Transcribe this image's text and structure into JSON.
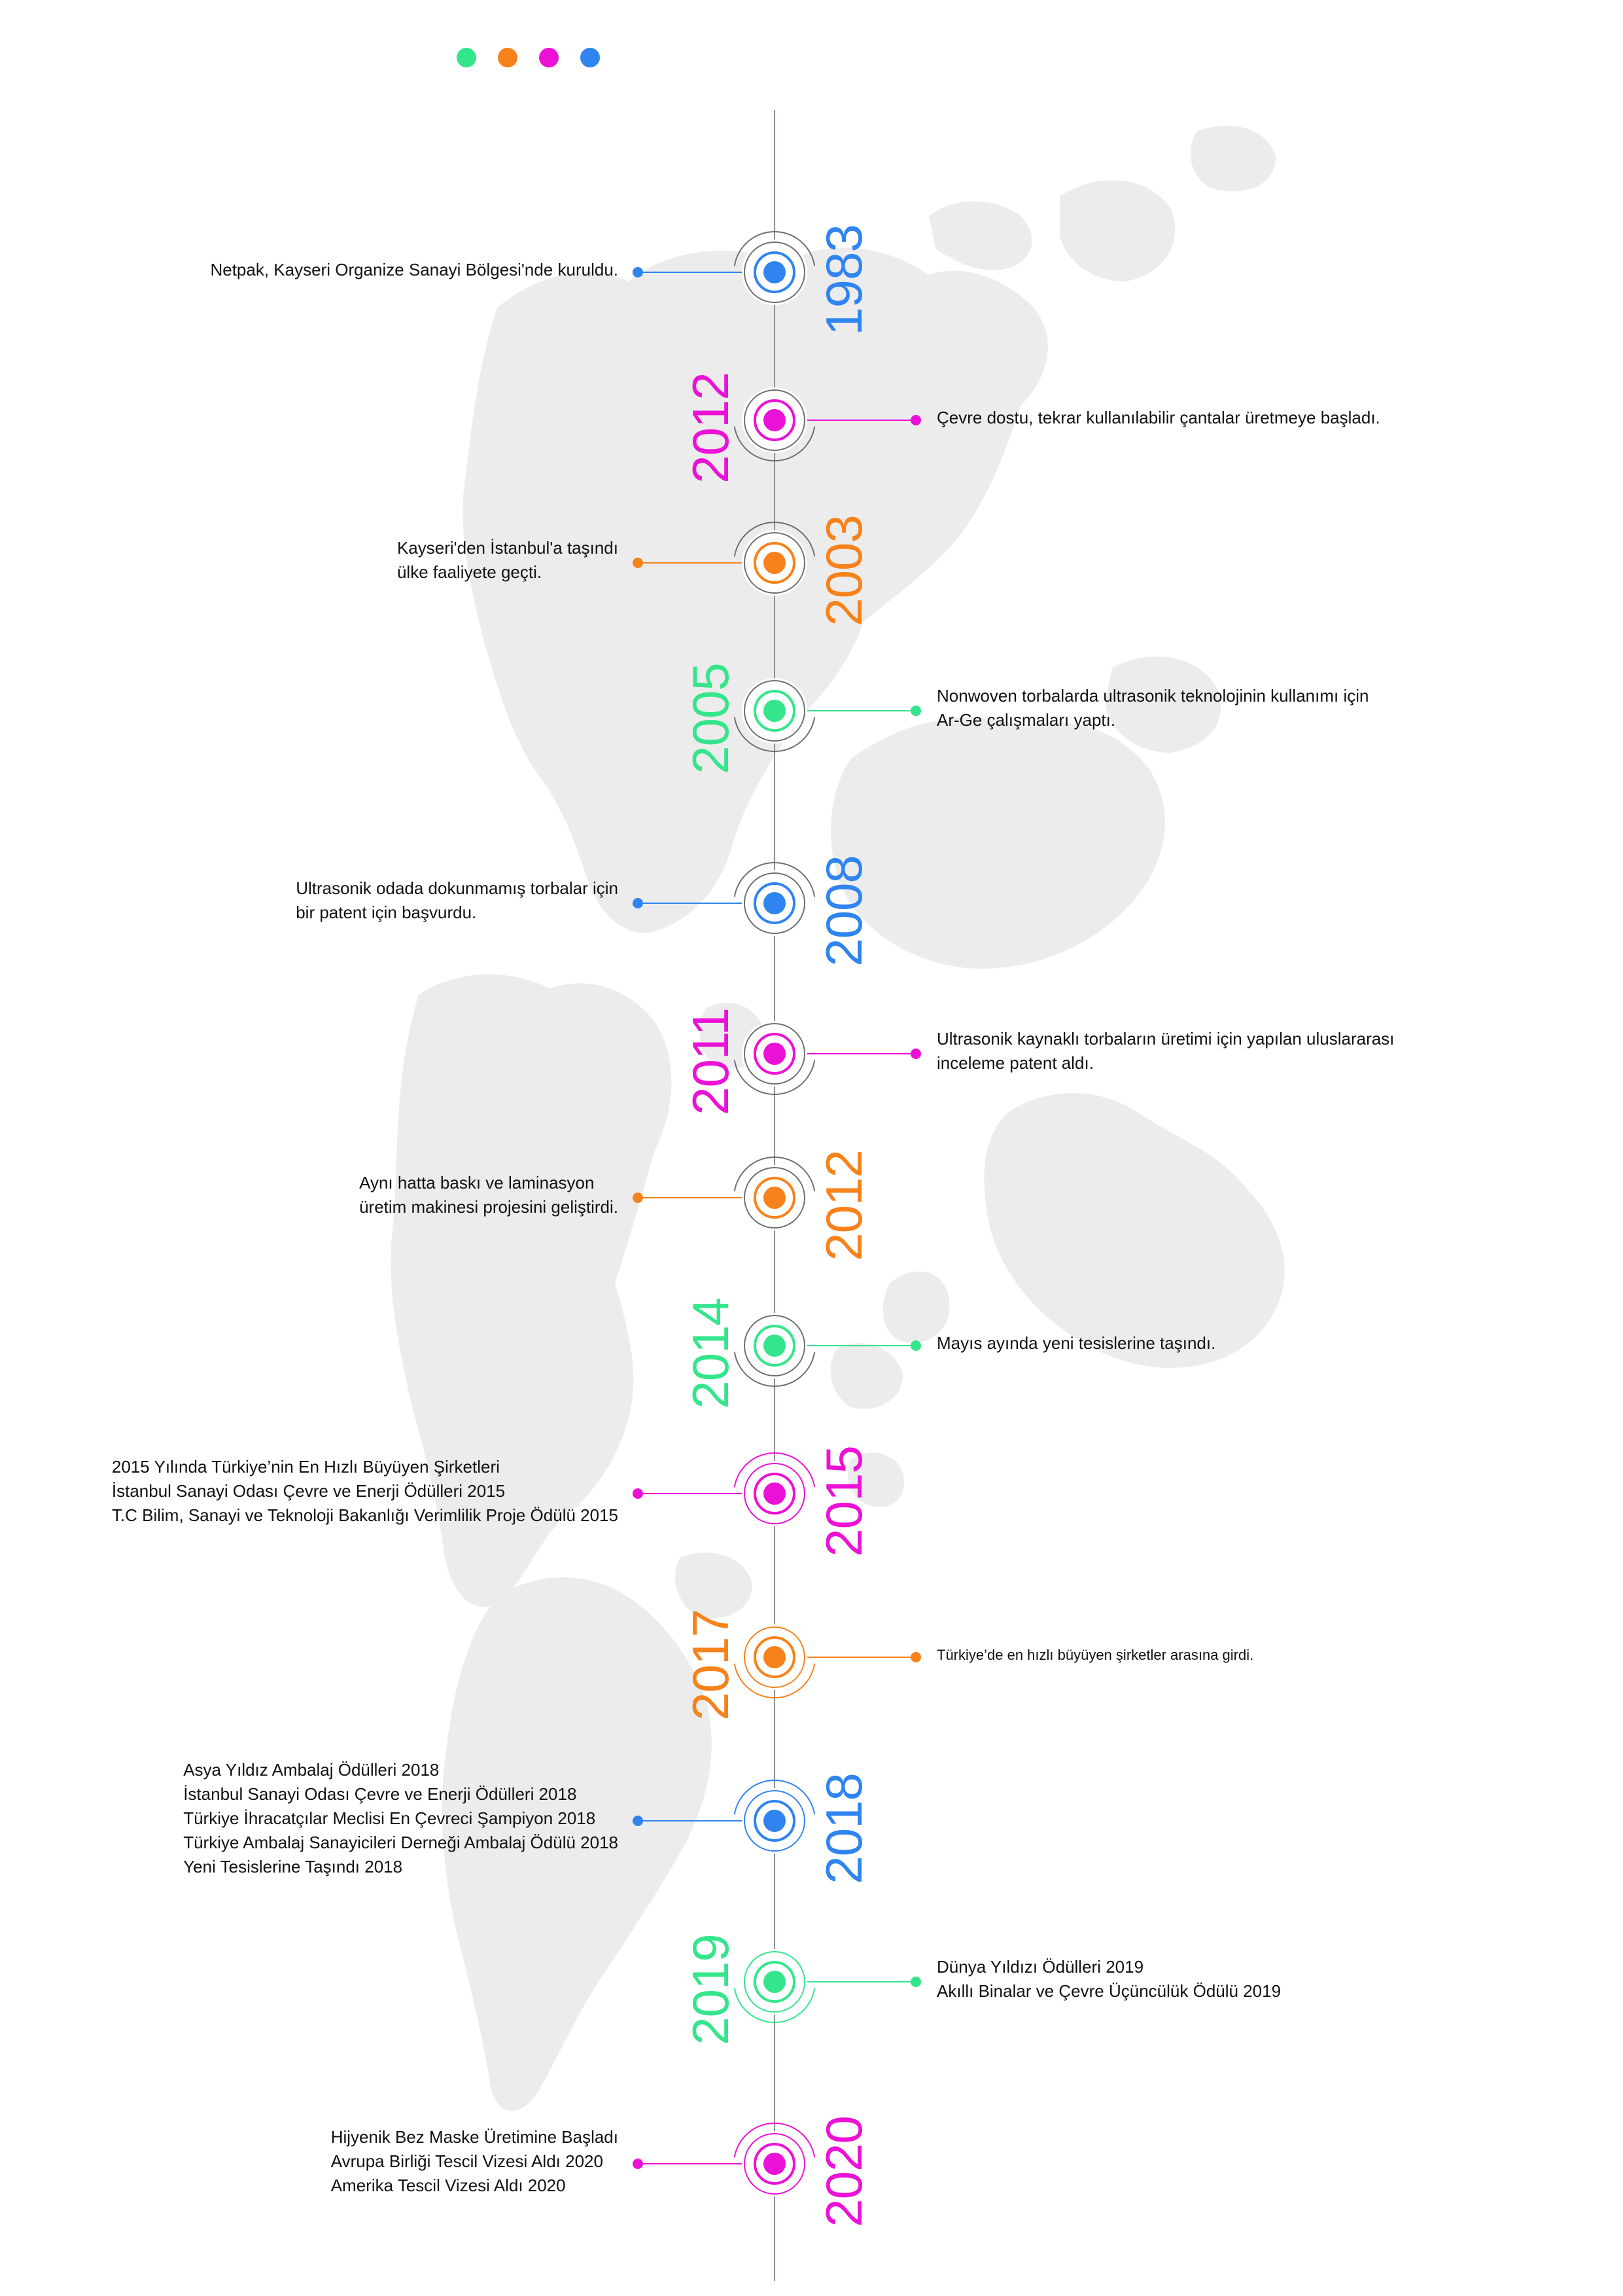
{
  "colors": {
    "green": "#35e58c",
    "orange": "#f7821b",
    "magenta": "#ec11d6",
    "blue": "#2f84f0",
    "axis": "#8a9096",
    "ring": "#6f6f6f",
    "map": "#ececec"
  },
  "legend": [
    "green",
    "orange",
    "magenta",
    "blue"
  ],
  "events": [
    {
      "year": "1983",
      "color": "blue",
      "side": "left",
      "lines": [
        "Netpak, Kayseri Organize Sanayi Bölgesi'nde kuruldu."
      ]
    },
    {
      "year": "2012",
      "color": "magenta",
      "side": "right",
      "lines": [
        "Çevre dostu, tekrar kullanılabilir çantalar üretmeye başladı."
      ]
    },
    {
      "year": "2003",
      "color": "orange",
      "side": "left",
      "lines": [
        "Kayseri'den İstanbul'a taşındı",
        "ülke faaliyete geçti."
      ]
    },
    {
      "year": "2005",
      "color": "green",
      "side": "right",
      "lines": [
        "Nonwoven torbalarda ultrasonik teknolojinin kullanımı için",
        "Ar-Ge çalışmaları yaptı."
      ]
    },
    {
      "year": "2008",
      "color": "blue",
      "side": "left",
      "lines": [
        "Ultrasonik odada dokunmamış torbalar için",
        "bir patent için başvurdu."
      ]
    },
    {
      "year": "2011",
      "color": "magenta",
      "side": "right",
      "lines": [
        "Ultrasonik kaynaklı torbaların üretimi için yapılan uluslararası",
        "inceleme patent aldı."
      ]
    },
    {
      "year": "2012",
      "color": "orange",
      "side": "left",
      "lines": [
        "Aynı hatta baskı ve laminasyon",
        "üretim makinesi projesini geliştirdi."
      ]
    },
    {
      "year": "2014",
      "color": "green",
      "side": "right",
      "lines": [
        "Mayıs ayında yeni tesislerine taşındı."
      ]
    },
    {
      "year": "2015",
      "color": "magenta",
      "side": "left",
      "lines": [
        "2015 Yılında Türkiye’nin En Hızlı Büyüyen Şirketleri",
        "İstanbul Sanayi Odası Çevre ve Enerji Ödülleri 2015",
        "T.C Bilim, Sanayi ve Teknoloji Bakanlığı Verimlilik Proje Ödülü 2015"
      ]
    },
    {
      "year": "2017",
      "color": "orange",
      "side": "right",
      "lines": [
        "Türkiye’de en hızlı büyüyen şirketler arasına girdi."
      ]
    },
    {
      "year": "2018",
      "color": "blue",
      "side": "left",
      "lines": [
        "Asya Yıldız Ambalaj Ödülleri 2018",
        "İstanbul Sanayi Odası Çevre ve Enerji Ödülleri 2018",
        "Türkiye İhracatçılar Meclisi En Çevreci Şampiyon 2018",
        "Türkiye Ambalaj Sanayicileri Derneği Ambalaj Ödülü 2018",
        "Yeni Tesislerine Taşındı 2018"
      ]
    },
    {
      "year": "2019",
      "color": "green",
      "side": "right",
      "lines": [
        "Dünya Yıldızı Ödülleri 2019",
        "Akıllı Binalar ve Çevre Üçüncülük Ödülü 2019"
      ]
    },
    {
      "year": "2020",
      "color": "magenta",
      "side": "left",
      "lines": [
        "Hijyenik Bez Maske Üretimine Başladı",
        "Avrupa Birliği Tescil Vizesi Aldı 2020",
        "Amerika Tescil Vizesi Aldı 2020"
      ]
    }
  ]
}
